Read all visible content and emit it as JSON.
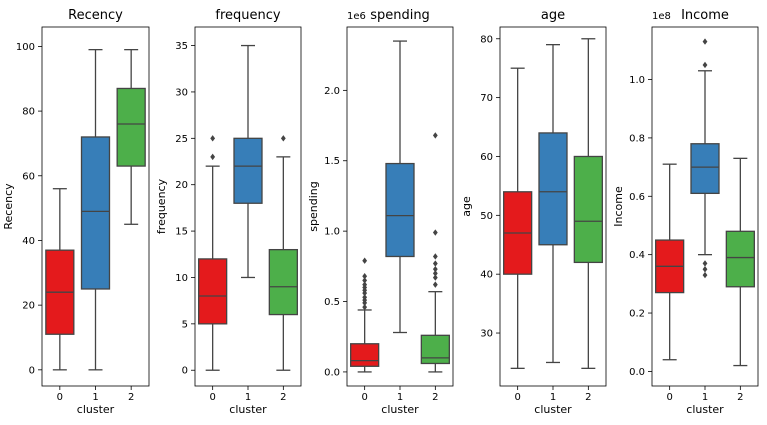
{
  "chart_data": [
    {
      "type": "box",
      "title": "Recency",
      "xlabel": "cluster",
      "ylabel": "Recency",
      "ylim": [
        -5,
        106
      ],
      "yticks": [
        0,
        20,
        40,
        60,
        80,
        100
      ],
      "ytick_labels": [
        "0",
        "20",
        "40",
        "60",
        "80",
        "100"
      ],
      "offset_label": "",
      "categories": [
        "0",
        "1",
        "2"
      ],
      "colors": [
        "#e41a1c",
        "#377eb8",
        "#4daf4a"
      ],
      "boxes": [
        {
          "cluster": "0",
          "whisker_low": 0,
          "q1": 11,
          "median": 24,
          "q3": 37,
          "whisker_high": 56,
          "outliers": []
        },
        {
          "cluster": "1",
          "whisker_low": 0,
          "q1": 25,
          "median": 49,
          "q3": 72,
          "whisker_high": 99,
          "outliers": []
        },
        {
          "cluster": "2",
          "whisker_low": 45,
          "q1": 63,
          "median": 76,
          "q3": 87,
          "whisker_high": 99,
          "outliers": []
        }
      ]
    },
    {
      "type": "box",
      "title": "frequency",
      "xlabel": "cluster",
      "ylabel": "frequency",
      "ylim": [
        -1.7,
        37
      ],
      "yticks": [
        0,
        5,
        10,
        15,
        20,
        25,
        30,
        35
      ],
      "ytick_labels": [
        "0",
        "5",
        "10",
        "15",
        "20",
        "25",
        "30",
        "35"
      ],
      "offset_label": "",
      "categories": [
        "0",
        "1",
        "2"
      ],
      "colors": [
        "#e41a1c",
        "#377eb8",
        "#4daf4a"
      ],
      "boxes": [
        {
          "cluster": "0",
          "whisker_low": 0,
          "q1": 5,
          "median": 8,
          "q3": 12,
          "whisker_high": 22,
          "outliers": [
            23,
            25
          ]
        },
        {
          "cluster": "1",
          "whisker_low": 10,
          "q1": 18,
          "median": 22,
          "q3": 25,
          "whisker_high": 35,
          "outliers": []
        },
        {
          "cluster": "2",
          "whisker_low": 0,
          "q1": 6,
          "median": 9,
          "q3": 13,
          "whisker_high": 23,
          "outliers": [
            25
          ]
        }
      ]
    },
    {
      "type": "box",
      "title": "spending",
      "xlabel": "cluster",
      "ylabel": "spending",
      "ylim": [
        -0.1,
        2.45
      ],
      "yticks": [
        0,
        0.5,
        1.0,
        1.5,
        2.0
      ],
      "ytick_labels": [
        "0.0",
        "0.5",
        "1.0",
        "1.5",
        "2.0"
      ],
      "offset_label": "1e6",
      "categories": [
        "0",
        "1",
        "2"
      ],
      "colors": [
        "#e41a1c",
        "#377eb8",
        "#4daf4a"
      ],
      "boxes": [
        {
          "cluster": "0",
          "whisker_low": 0.0,
          "q1": 0.04,
          "median": 0.08,
          "q3": 0.2,
          "whisker_high": 0.44,
          "outliers": [
            0.46,
            0.49,
            0.51,
            0.53,
            0.56,
            0.58,
            0.6,
            0.62,
            0.65,
            0.68,
            0.79
          ]
        },
        {
          "cluster": "1",
          "whisker_low": 0.28,
          "q1": 0.82,
          "median": 1.11,
          "q3": 1.48,
          "whisker_high": 2.35,
          "outliers": []
        },
        {
          "cluster": "2",
          "whisker_low": 0.0,
          "q1": 0.06,
          "median": 0.1,
          "q3": 0.26,
          "whisker_high": 0.57,
          "outliers": [
            0.62,
            0.67,
            0.7,
            0.73,
            0.77,
            0.82,
            0.99,
            1.68
          ]
        }
      ]
    },
    {
      "type": "box",
      "title": "age",
      "xlabel": "cluster",
      "ylabel": "age",
      "ylim": [
        21,
        82
      ],
      "yticks": [
        30,
        40,
        50,
        60,
        70,
        80
      ],
      "ytick_labels": [
        "30",
        "40",
        "50",
        "60",
        "70",
        "80"
      ],
      "offset_label": "",
      "categories": [
        "0",
        "1",
        "2"
      ],
      "colors": [
        "#e41a1c",
        "#377eb8",
        "#4daf4a"
      ],
      "boxes": [
        {
          "cluster": "0",
          "whisker_low": 24,
          "q1": 40,
          "median": 47,
          "q3": 54,
          "whisker_high": 75,
          "outliers": []
        },
        {
          "cluster": "1",
          "whisker_low": 25,
          "q1": 45,
          "median": 54,
          "q3": 64,
          "whisker_high": 79,
          "outliers": []
        },
        {
          "cluster": "2",
          "whisker_low": 24,
          "q1": 42,
          "median": 49,
          "q3": 60,
          "whisker_high": 80,
          "outliers": []
        }
      ]
    },
    {
      "type": "box",
      "title": "Income",
      "xlabel": "cluster",
      "ylabel": "Income",
      "ylim": [
        -0.05,
        1.18
      ],
      "yticks": [
        0,
        0.2,
        0.4,
        0.6,
        0.8,
        1.0
      ],
      "ytick_labels": [
        "0.0",
        "0.2",
        "0.4",
        "0.6",
        "0.8",
        "1.0"
      ],
      "offset_label": "1e8",
      "categories": [
        "0",
        "1",
        "2"
      ],
      "colors": [
        "#e41a1c",
        "#377eb8",
        "#4daf4a"
      ],
      "boxes": [
        {
          "cluster": "0",
          "whisker_low": 0.04,
          "q1": 0.27,
          "median": 0.36,
          "q3": 0.45,
          "whisker_high": 0.71,
          "outliers": []
        },
        {
          "cluster": "1",
          "whisker_low": 0.4,
          "q1": 0.61,
          "median": 0.7,
          "q3": 0.78,
          "whisker_high": 1.03,
          "outliers": [
            0.33,
            0.35,
            0.37,
            1.05,
            1.13
          ]
        },
        {
          "cluster": "2",
          "whisker_low": 0.02,
          "q1": 0.29,
          "median": 0.39,
          "q3": 0.48,
          "whisker_high": 0.73,
          "outliers": []
        }
      ]
    }
  ]
}
